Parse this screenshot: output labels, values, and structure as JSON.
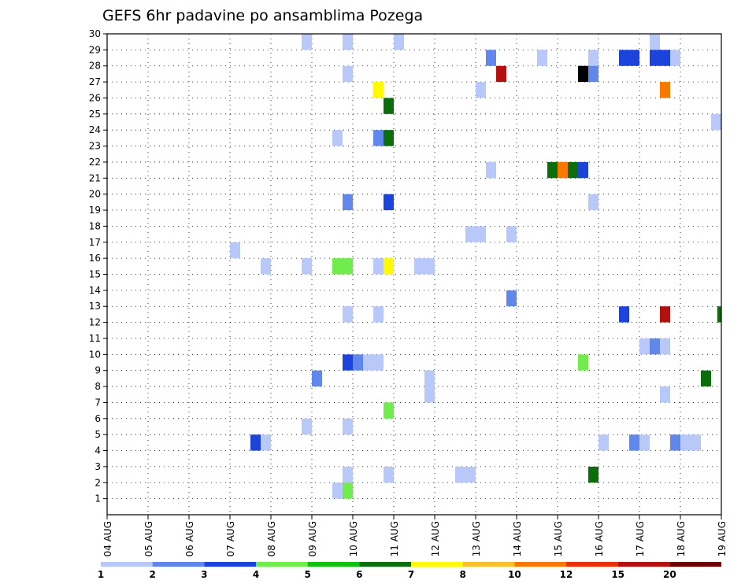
{
  "chart_data": {
    "type": "heatmap",
    "title": "GEFS 6hr padavine po ansamblima Pozega",
    "x_tick_labels": [
      "04 AUG",
      "05 AUG",
      "06 AUG",
      "07 AUG",
      "08 AUG",
      "09 AUG",
      "10 AUG",
      "11 AUG",
      "12 AUG",
      "13 AUG",
      "14 AUG",
      "15 AUG",
      "16 AUG",
      "17 AUG",
      "18 AUG",
      "19 AUG"
    ],
    "x_range_days": [
      0,
      15
    ],
    "y_tick_labels": [
      "1",
      "2",
      "3",
      "4",
      "5",
      "6",
      "7",
      "8",
      "9",
      "10",
      "11",
      "12",
      "13",
      "14",
      "15",
      "16",
      "17",
      "18",
      "19",
      "20",
      "21",
      "22",
      "23",
      "24",
      "25",
      "26",
      "27",
      "28",
      "29",
      "30"
    ],
    "y_range": [
      0,
      30
    ],
    "grid": true,
    "colorbar": {
      "labels": [
        "1",
        "2",
        "3",
        "4",
        "5",
        "6",
        "7",
        "8",
        "10",
        "12",
        "15",
        "20"
      ],
      "colors": [
        "#b8c8f8",
        "#6088ec",
        "#1c44dc",
        "#70ec4c",
        "#10c010",
        "#0a6e0a",
        "#fffa00",
        "#fac030",
        "#f87800",
        "#e83000",
        "#b41010",
        "#6e0000"
      ]
    },
    "cells": [
      {
        "x": 4.75,
        "w": 0.25,
        "y": 30,
        "c": 1
      },
      {
        "x": 5.75,
        "w": 0.25,
        "y": 30,
        "c": 1
      },
      {
        "x": 7.0,
        "w": 0.25,
        "y": 30,
        "c": 1
      },
      {
        "x": 13.25,
        "w": 0.25,
        "y": 30,
        "c": 1
      },
      {
        "x": 9.25,
        "w": 0.25,
        "y": 29,
        "c": 2
      },
      {
        "x": 10.5,
        "w": 0.25,
        "y": 29,
        "c": 1
      },
      {
        "x": 11.75,
        "w": 0.25,
        "y": 29,
        "c": 1
      },
      {
        "x": 12.5,
        "w": 0.5,
        "y": 29,
        "c": 3
      },
      {
        "x": 13.25,
        "w": 0.5,
        "y": 29,
        "c": 3
      },
      {
        "x": 13.75,
        "w": 0.25,
        "y": 29,
        "c": 1
      },
      {
        "x": 5.75,
        "w": 0.25,
        "y": 28,
        "c": 1
      },
      {
        "x": 9.5,
        "w": 0.25,
        "y": 28,
        "c": 11
      },
      {
        "x": 11.5,
        "w": 0.25,
        "y": 28,
        "c": 18
      },
      {
        "x": 11.75,
        "w": 0.25,
        "y": 28,
        "c": 2
      },
      {
        "x": 6.5,
        "w": 0.25,
        "y": 27,
        "c": 7
      },
      {
        "x": 9.0,
        "w": 0.25,
        "y": 27,
        "c": 1
      },
      {
        "x": 13.5,
        "w": 0.25,
        "y": 27,
        "c": 9
      },
      {
        "x": 6.75,
        "w": 0.25,
        "y": 26,
        "c": 6
      },
      {
        "x": 14.75,
        "w": 0.25,
        "y": 25,
        "c": 1
      },
      {
        "x": 5.5,
        "w": 0.25,
        "y": 24,
        "c": 1
      },
      {
        "x": 6.5,
        "w": 0.25,
        "y": 24,
        "c": 2
      },
      {
        "x": 6.75,
        "w": 0.25,
        "y": 24,
        "c": 6
      },
      {
        "x": 9.25,
        "w": 0.25,
        "y": 22,
        "c": 1
      },
      {
        "x": 10.75,
        "w": 0.25,
        "y": 22,
        "c": 6
      },
      {
        "x": 11.0,
        "w": 0.25,
        "y": 22,
        "c": 9
      },
      {
        "x": 11.25,
        "w": 0.25,
        "y": 22,
        "c": 6
      },
      {
        "x": 11.5,
        "w": 0.25,
        "y": 22,
        "c": 3
      },
      {
        "x": 5.75,
        "w": 0.25,
        "y": 20,
        "c": 2
      },
      {
        "x": 6.75,
        "w": 0.25,
        "y": 20,
        "c": 3
      },
      {
        "x": 11.75,
        "w": 0.25,
        "y": 20,
        "c": 1
      },
      {
        "x": 8.75,
        "w": 0.5,
        "y": 18,
        "c": 1
      },
      {
        "x": 9.75,
        "w": 0.25,
        "y": 18,
        "c": 1
      },
      {
        "x": 3.0,
        "w": 0.25,
        "y": 17,
        "c": 1
      },
      {
        "x": 3.75,
        "w": 0.25,
        "y": 16,
        "c": 1
      },
      {
        "x": 4.75,
        "w": 0.25,
        "y": 16,
        "c": 1
      },
      {
        "x": 5.5,
        "w": 0.5,
        "y": 16,
        "c": 4
      },
      {
        "x": 6.5,
        "w": 0.25,
        "y": 16,
        "c": 1
      },
      {
        "x": 6.75,
        "w": 0.25,
        "y": 16,
        "c": 7
      },
      {
        "x": 7.5,
        "w": 0.5,
        "y": 16,
        "c": 1
      },
      {
        "x": 9.75,
        "w": 0.25,
        "y": 14,
        "c": 2
      },
      {
        "x": 5.75,
        "w": 0.25,
        "y": 13,
        "c": 1
      },
      {
        "x": 6.5,
        "w": 0.25,
        "y": 13,
        "c": 1
      },
      {
        "x": 12.5,
        "w": 0.25,
        "y": 13,
        "c": 3
      },
      {
        "x": 13.5,
        "w": 0.25,
        "y": 13,
        "c": 11
      },
      {
        "x": 14.9,
        "w": 0.1,
        "y": 13,
        "c": 6
      },
      {
        "x": 13.0,
        "w": 0.25,
        "y": 11,
        "c": 1
      },
      {
        "x": 13.25,
        "w": 0.25,
        "y": 11,
        "c": 2
      },
      {
        "x": 13.5,
        "w": 0.25,
        "y": 11,
        "c": 1
      },
      {
        "x": 5.75,
        "w": 0.25,
        "y": 10,
        "c": 3
      },
      {
        "x": 6.0,
        "w": 0.25,
        "y": 10,
        "c": 2
      },
      {
        "x": 6.25,
        "w": 0.5,
        "y": 10,
        "c": 1
      },
      {
        "x": 11.5,
        "w": 0.25,
        "y": 10,
        "c": 4
      },
      {
        "x": 5.0,
        "w": 0.25,
        "y": 9,
        "c": 2
      },
      {
        "x": 14.5,
        "w": 0.25,
        "y": 9,
        "c": 6
      },
      {
        "x": 7.75,
        "w": 0.25,
        "y": 9,
        "c": 1
      },
      {
        "x": 7.75,
        "w": 0.25,
        "y": 8,
        "c": 1
      },
      {
        "x": 13.5,
        "w": 0.25,
        "y": 8,
        "c": 1
      },
      {
        "x": 6.75,
        "w": 0.25,
        "y": 7,
        "c": 4
      },
      {
        "x": 4.75,
        "w": 0.25,
        "y": 6,
        "c": 1
      },
      {
        "x": 5.75,
        "w": 0.25,
        "y": 6,
        "c": 1
      },
      {
        "x": 3.5,
        "w": 0.25,
        "y": 5,
        "c": 3
      },
      {
        "x": 3.75,
        "w": 0.25,
        "y": 5,
        "c": 1
      },
      {
        "x": 12.0,
        "w": 0.25,
        "y": 5,
        "c": 1
      },
      {
        "x": 12.75,
        "w": 0.25,
        "y": 5,
        "c": 2
      },
      {
        "x": 13.0,
        "w": 0.25,
        "y": 5,
        "c": 1
      },
      {
        "x": 13.75,
        "w": 0.25,
        "y": 5,
        "c": 2
      },
      {
        "x": 14.0,
        "w": 0.5,
        "y": 5,
        "c": 1
      },
      {
        "x": 5.75,
        "w": 0.25,
        "y": 3,
        "c": 1
      },
      {
        "x": 6.75,
        "w": 0.25,
        "y": 3,
        "c": 1
      },
      {
        "x": 8.5,
        "w": 0.5,
        "y": 3,
        "c": 1
      },
      {
        "x": 11.75,
        "w": 0.25,
        "y": 3,
        "c": 6
      },
      {
        "x": 5.5,
        "w": 0.25,
        "y": 2,
        "c": 1
      },
      {
        "x": 5.75,
        "w": 0.25,
        "y": 2,
        "c": 4
      }
    ]
  }
}
